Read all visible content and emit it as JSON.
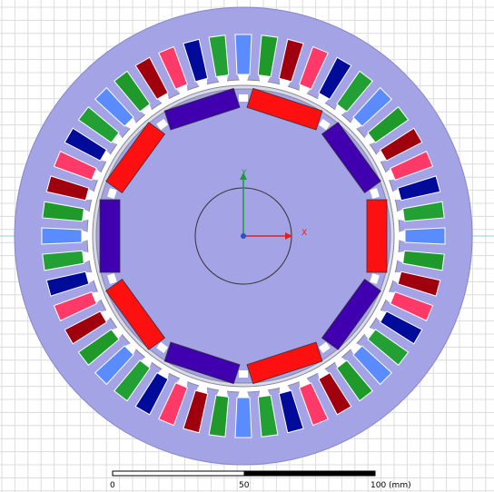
{
  "axes": {
    "y_label": "Y",
    "x_label": "X"
  },
  "scale_bar": {
    "labels": [
      "0",
      "50",
      "100 (mm)"
    ]
  }
}
